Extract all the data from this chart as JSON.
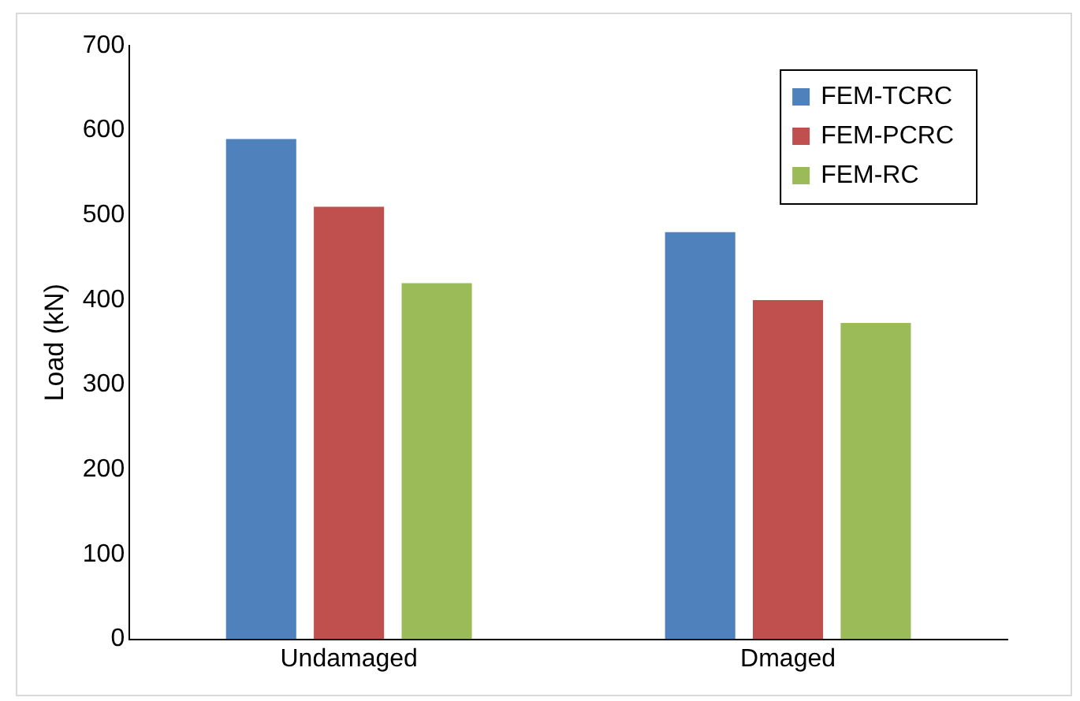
{
  "chart_data": {
    "type": "bar",
    "ylabel": "Load (kN)",
    "categories": [
      "Undamaged",
      "Dmaged"
    ],
    "series": [
      {
        "name": "FEM-TCRC",
        "color": "#4f81bd",
        "values": [
          590,
          480
        ]
      },
      {
        "name": "FEM-PCRC",
        "color": "#c0504d",
        "values": [
          510,
          400
        ]
      },
      {
        "name": "FEM-RC",
        "color": "#9bbb59",
        "values": [
          420,
          373
        ]
      }
    ],
    "ylim": [
      0,
      700
    ],
    "yticks": [
      0,
      100,
      200,
      300,
      400,
      500,
      600,
      700
    ],
    "grid": false,
    "legend": "top right"
  }
}
